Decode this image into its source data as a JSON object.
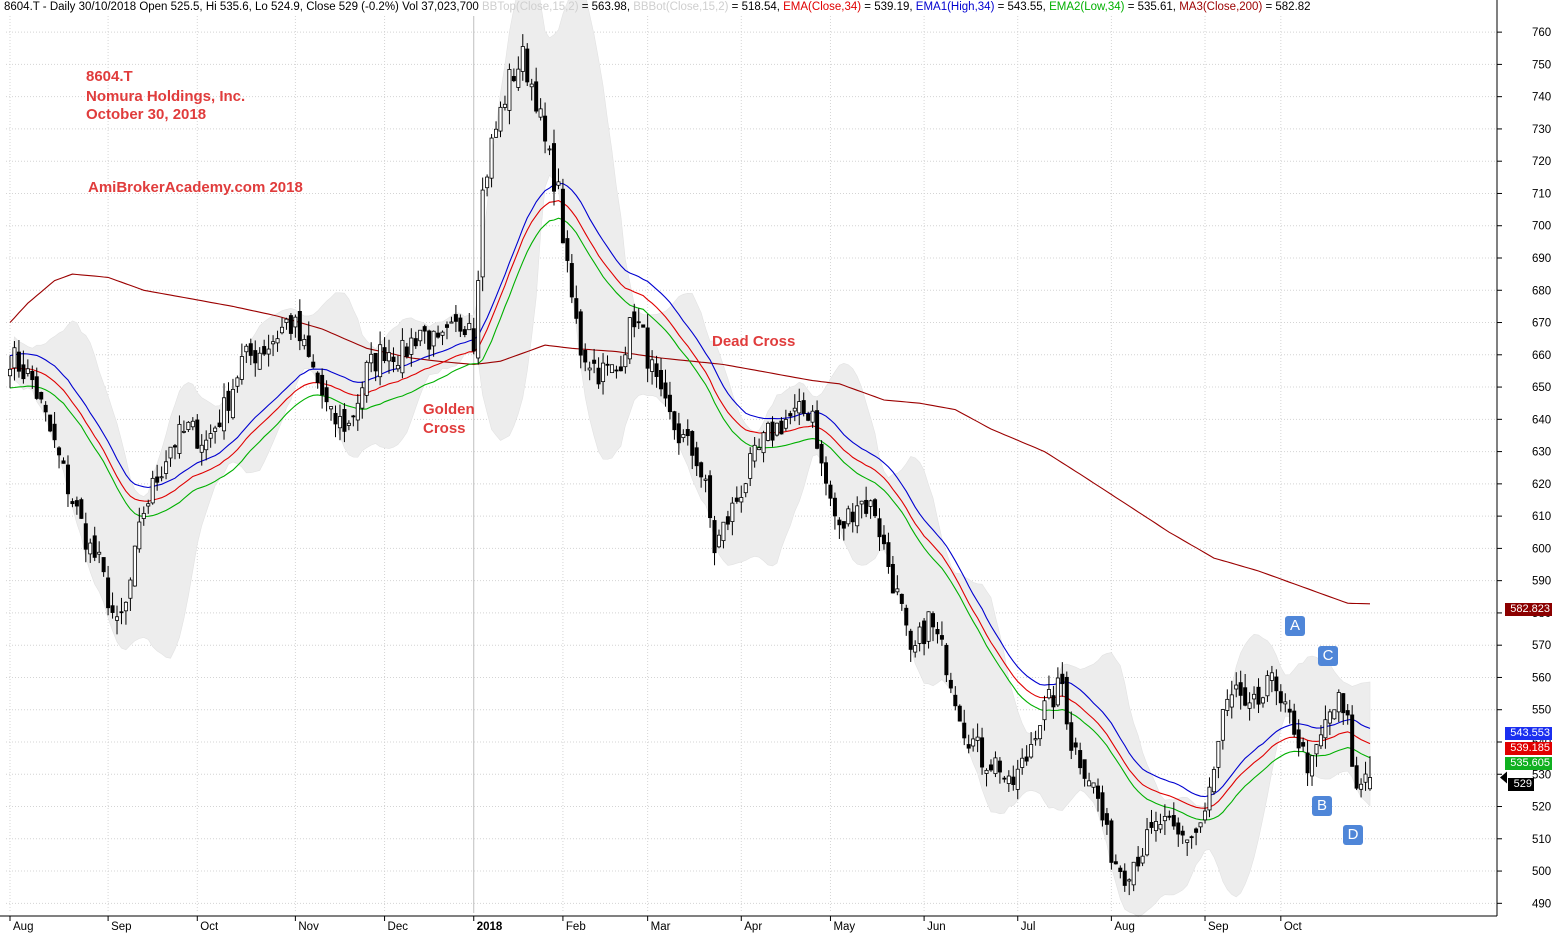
{
  "header": {
    "prefix": "8604.T - Daily 30/10/2018 Open 525.5, Hi 535.6, Lo 524.9, Close 529 (-0.2%) Vol 37,023,700",
    "bbtop_label": "BBTop(Close,15,2)",
    "bbtop_value": " = 563.98, ",
    "bbbot_label": "BBBot(Close,15,2)",
    "bbbot_value": " = 518.54, ",
    "ema_label": "EMA(Close,34)",
    "ema_value": " = 539.19, ",
    "ema1_label": "EMA1(High,34)",
    "ema1_value": " = 543.55, ",
    "ema2_label": "EMA2(Low,34)",
    "ema2_value": " = 535.61, ",
    "ma3_label": "MA3(Close,200)",
    "ma3_value": " = 582.82"
  },
  "annotations": {
    "ticker": "8604.T",
    "company": "Nomura Holdings, Inc.",
    "date": "October 30, 2018",
    "site": "AmiBrokerAcademy.com  2018",
    "golden_cross": [
      "Golden",
      "Cross"
    ],
    "dead_cross": "Dead Cross",
    "markers": [
      "A",
      "B",
      "C",
      "D"
    ]
  },
  "price_tags": {
    "ma200": "582.823",
    "ema_high": "543.553",
    "ema_close": "539.185",
    "ema_low": "535.605",
    "close": "529"
  },
  "colors": {
    "ema_close": "#e00000",
    "ema_high": "#0000d0",
    "ema_low": "#00b000",
    "ma200": "#9b0000",
    "bollinger_fill": "#ededed",
    "marker": "#4f86d8",
    "annotation": "#e03c3c"
  },
  "chart_data": {
    "type": "candlestick",
    "y_ticks": [
      490,
      500,
      510,
      520,
      530,
      540,
      550,
      560,
      570,
      580,
      590,
      600,
      610,
      620,
      630,
      640,
      650,
      660,
      670,
      680,
      690,
      700,
      710,
      720,
      730,
      740,
      750,
      760
    ],
    "ylim": [
      487,
      765
    ],
    "months": [
      {
        "label": "Aug",
        "i": 0
      },
      {
        "label": "Sep",
        "i": 22
      },
      {
        "label": "Oct",
        "i": 42
      },
      {
        "label": "Nov",
        "i": 64
      },
      {
        "label": "Dec",
        "i": 84
      },
      {
        "label": "2018",
        "i": 104,
        "bold": true
      },
      {
        "label": "Feb",
        "i": 124
      },
      {
        "label": "Mar",
        "i": 143
      },
      {
        "label": "Apr",
        "i": 164
      },
      {
        "label": "May",
        "i": 184
      },
      {
        "label": "Jun",
        "i": 205
      },
      {
        "label": "Jul",
        "i": 226
      },
      {
        "label": "Aug",
        "i": 247
      },
      {
        "label": "Sep",
        "i": 268
      },
      {
        "label": "Oct",
        "i": 285
      }
    ],
    "close_anchors": [
      [
        0,
        660
      ],
      [
        5,
        652
      ],
      [
        10,
        632
      ],
      [
        14,
        615
      ],
      [
        18,
        600
      ],
      [
        20,
        595
      ],
      [
        24,
        575
      ],
      [
        26,
        582
      ],
      [
        30,
        612
      ],
      [
        36,
        632
      ],
      [
        40,
        637
      ],
      [
        44,
        633
      ],
      [
        48,
        643
      ],
      [
        52,
        658
      ],
      [
        58,
        663
      ],
      [
        62,
        670
      ],
      [
        64,
        668
      ],
      [
        68,
        655
      ],
      [
        72,
        640
      ],
      [
        76,
        638
      ],
      [
        80,
        655
      ],
      [
        84,
        662
      ],
      [
        88,
        660
      ],
      [
        92,
        668
      ],
      [
        96,
        662
      ],
      [
        100,
        668
      ],
      [
        103,
        672
      ],
      [
        104,
        665
      ],
      [
        106,
        710
      ],
      [
        108,
        725
      ],
      [
        112,
        745
      ],
      [
        115,
        752
      ],
      [
        118,
        740
      ],
      [
        120,
        725
      ],
      [
        123,
        710
      ],
      [
        125,
        685
      ],
      [
        128,
        662
      ],
      [
        132,
        655
      ],
      [
        136,
        655
      ],
      [
        140,
        672
      ],
      [
        142,
        665
      ],
      [
        146,
        645
      ],
      [
        150,
        635
      ],
      [
        154,
        628
      ],
      [
        156,
        618
      ],
      [
        158,
        600
      ],
      [
        162,
        612
      ],
      [
        166,
        625
      ],
      [
        170,
        635
      ],
      [
        174,
        640
      ],
      [
        178,
        642
      ],
      [
        180,
        643
      ],
      [
        182,
        625
      ],
      [
        186,
        605
      ],
      [
        190,
        615
      ],
      [
        194,
        612
      ],
      [
        196,
        600
      ],
      [
        200,
        580
      ],
      [
        202,
        565
      ],
      [
        206,
        578
      ],
      [
        210,
        565
      ],
      [
        214,
        545
      ],
      [
        218,
        535
      ],
      [
        222,
        533
      ],
      [
        224,
        525
      ],
      [
        228,
        535
      ],
      [
        230,
        545
      ],
      [
        232,
        550
      ],
      [
        236,
        558
      ],
      [
        238,
        540
      ],
      [
        242,
        530
      ],
      [
        244,
        522
      ],
      [
        246,
        510
      ],
      [
        248,
        503
      ],
      [
        250,
        500
      ],
      [
        254,
        507
      ],
      [
        258,
        515
      ],
      [
        262,
        510
      ],
      [
        266,
        512
      ],
      [
        268,
        518
      ],
      [
        270,
        530
      ],
      [
        272,
        548
      ],
      [
        276,
        555
      ],
      [
        278,
        548
      ],
      [
        280,
        553
      ],
      [
        282,
        562
      ],
      [
        285,
        550
      ],
      [
        288,
        545
      ],
      [
        290,
        536
      ],
      [
        292,
        532
      ],
      [
        294,
        541
      ],
      [
        296,
        549
      ],
      [
        298,
        552
      ],
      [
        300,
        545
      ],
      [
        302,
        524
      ],
      [
        304,
        531
      ],
      [
        305,
        529
      ]
    ],
    "ma200_anchors": [
      [
        0,
        670
      ],
      [
        4,
        676
      ],
      [
        10,
        683
      ],
      [
        14,
        685
      ],
      [
        22,
        684
      ],
      [
        30,
        680
      ],
      [
        42,
        677
      ],
      [
        50,
        675
      ],
      [
        60,
        672
      ],
      [
        70,
        668
      ],
      [
        80,
        662
      ],
      [
        90,
        659
      ],
      [
        96,
        658
      ],
      [
        104,
        657
      ],
      [
        110,
        658
      ],
      [
        116,
        661
      ],
      [
        120,
        663
      ],
      [
        126,
        662
      ],
      [
        136,
        661
      ],
      [
        146,
        659
      ],
      [
        160,
        657
      ],
      [
        168,
        655
      ],
      [
        180,
        652
      ],
      [
        186,
        651
      ],
      [
        196,
        646
      ],
      [
        204,
        645
      ],
      [
        212,
        643
      ],
      [
        220,
        637
      ],
      [
        232,
        630
      ],
      [
        240,
        623
      ],
      [
        250,
        614
      ],
      [
        260,
        605
      ],
      [
        270,
        597
      ],
      [
        280,
        593
      ],
      [
        290,
        588
      ],
      [
        300,
        583
      ],
      [
        305,
        582.82
      ]
    ],
    "last_values": {
      "open": 525.5,
      "high": 535.6,
      "low": 524.9,
      "close": 529,
      "volume": "37,023,700"
    },
    "indicators": {
      "bbtop": 563.98,
      "bbbot": 518.54,
      "ema_close_34": 539.19,
      "ema_high_34": 543.55,
      "ema_low_34": 535.61,
      "ma_close_200": 582.82
    }
  }
}
